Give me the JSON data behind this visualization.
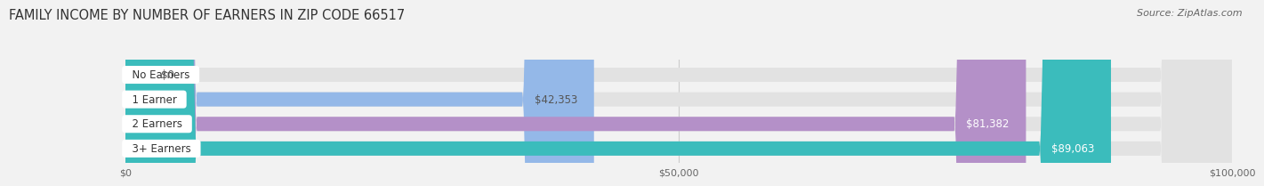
{
  "title": "FAMILY INCOME BY NUMBER OF EARNERS IN ZIP CODE 66517",
  "source": "Source: ZipAtlas.com",
  "categories": [
    "No Earners",
    "1 Earner",
    "2 Earners",
    "3+ Earners"
  ],
  "values": [
    0,
    42353,
    81382,
    89063
  ],
  "labels": [
    "$0",
    "$42,353",
    "$81,382",
    "$89,063"
  ],
  "bar_colors": [
    "#f4a0a0",
    "#94b8e8",
    "#b490c8",
    "#3bbcbc"
  ],
  "label_colors": [
    "#555555",
    "#555555",
    "#ffffff",
    "#ffffff"
  ],
  "xlim": [
    0,
    100000
  ],
  "xticks": [
    0,
    50000,
    100000
  ],
  "xtick_labels": [
    "$0",
    "$50,000",
    "$100,000"
  ],
  "background_color": "#f2f2f2",
  "bar_bg_color": "#e2e2e2",
  "title_fontsize": 10.5,
  "source_fontsize": 8,
  "bar_height": 0.58,
  "label_fontsize": 8.5,
  "category_fontsize": 8.5
}
